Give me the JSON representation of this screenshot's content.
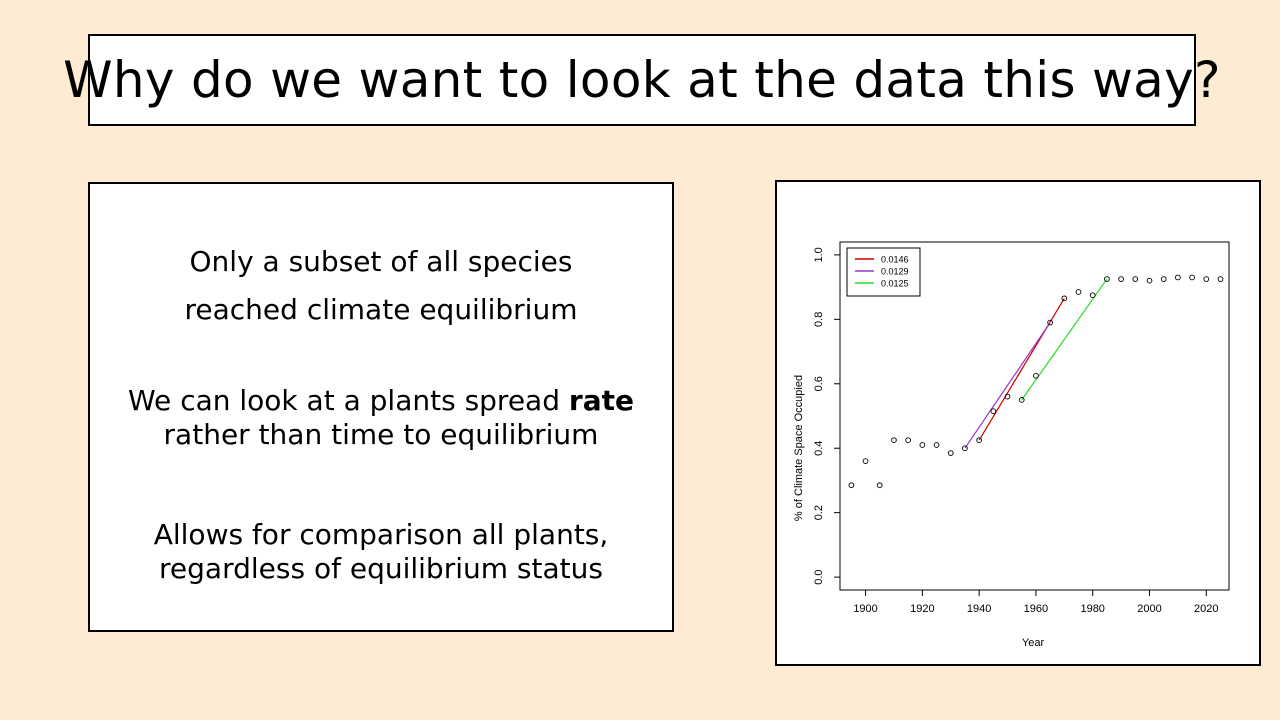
{
  "slide": {
    "title": "Why do we want to look at the data this way?",
    "point1_line1": "Only a subset of all species",
    "point1_line2": "reached climate equilibrium",
    "point2_line1_pre": "We can look at a plants spread ",
    "point2_line1_bold": "rate",
    "point2_line2": "rather than time to equilibrium",
    "point3_line1": "Allows for comparison all plants,",
    "point3_line2": "regardless of equilibrium status"
  },
  "colors": {
    "background": "#fdebd3",
    "red": "#cc0000",
    "purple": "#9933cc",
    "green": "#22dd22"
  },
  "chart_data": {
    "type": "scatter",
    "title": "",
    "xlabel": "Year",
    "ylabel": "% of Climate Space Occupied",
    "xlim": [
      1891,
      2028
    ],
    "ylim": [
      -0.04,
      1.04
    ],
    "xticks": [
      1900,
      1920,
      1940,
      1960,
      1980,
      2000,
      2020
    ],
    "yticks": [
      0.0,
      0.2,
      0.4,
      0.6,
      0.8,
      1.0
    ],
    "xtick_labels": [
      "1900",
      "1920",
      "1940",
      "1960",
      "1980",
      "2000",
      "2020"
    ],
    "ytick_labels": [
      "0.0",
      "0.2",
      "0.4",
      "0.6",
      "0.8",
      "1.0"
    ],
    "points": [
      {
        "x": 1895,
        "y": 0.285
      },
      {
        "x": 1900,
        "y": 0.36
      },
      {
        "x": 1905,
        "y": 0.285
      },
      {
        "x": 1910,
        "y": 0.425
      },
      {
        "x": 1915,
        "y": 0.425
      },
      {
        "x": 1920,
        "y": 0.41
      },
      {
        "x": 1925,
        "y": 0.41
      },
      {
        "x": 1930,
        "y": 0.385
      },
      {
        "x": 1935,
        "y": 0.4
      },
      {
        "x": 1940,
        "y": 0.425
      },
      {
        "x": 1945,
        "y": 0.515
      },
      {
        "x": 1950,
        "y": 0.56
      },
      {
        "x": 1955,
        "y": 0.55
      },
      {
        "x": 1960,
        "y": 0.625
      },
      {
        "x": 1965,
        "y": 0.79
      },
      {
        "x": 1970,
        "y": 0.865
      },
      {
        "x": 1975,
        "y": 0.885
      },
      {
        "x": 1980,
        "y": 0.875
      },
      {
        "x": 1985,
        "y": 0.925
      },
      {
        "x": 1990,
        "y": 0.925
      },
      {
        "x": 1995,
        "y": 0.925
      },
      {
        "x": 2000,
        "y": 0.92
      },
      {
        "x": 2005,
        "y": 0.925
      },
      {
        "x": 2010,
        "y": 0.93
      },
      {
        "x": 2015,
        "y": 0.93
      },
      {
        "x": 2020,
        "y": 0.925
      },
      {
        "x": 2025,
        "y": 0.925
      }
    ],
    "series": [
      {
        "name": "0.0146",
        "color": "#cc0000",
        "x": [
          1940,
          1970
        ],
        "y": [
          0.425,
          0.865
        ]
      },
      {
        "name": "0.0129",
        "color": "#9933cc",
        "x": [
          1935,
          1965
        ],
        "y": [
          0.4,
          0.79
        ]
      },
      {
        "name": "0.0125",
        "color": "#22dd22",
        "x": [
          1955,
          1985
        ],
        "y": [
          0.55,
          0.925
        ]
      }
    ],
    "legend_position": "top-left",
    "grid": false
  }
}
